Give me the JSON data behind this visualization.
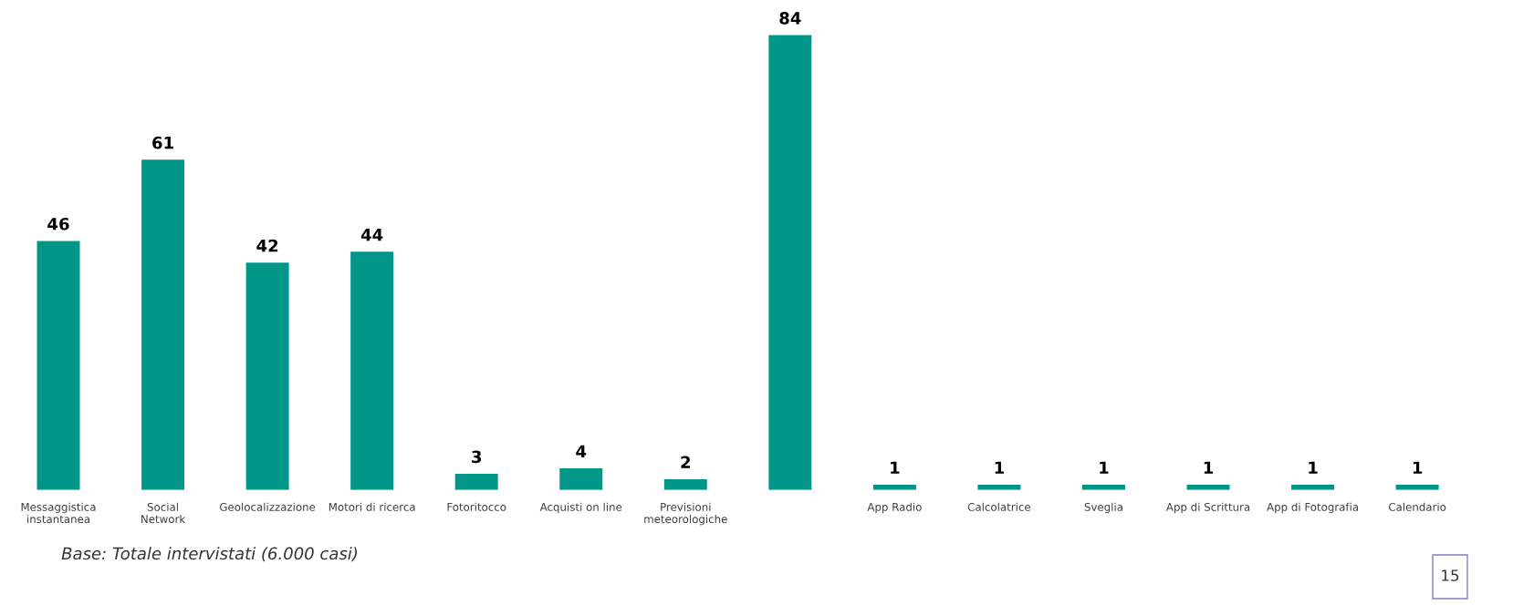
{
  "chart_data": {
    "type": "bar",
    "categories": [
      "Messaggistica\ninstantanea",
      "Social\nNetwork",
      "Geolocalizzazione",
      "Motori di ricerca",
      "Fotoritocco",
      "Acquisti on line",
      "Previsioni\nmeteorologiche",
      null,
      "App Radio",
      "Calcolatrice",
      "Sveglia",
      "App di Scrittura",
      "App di Fotografia",
      "Calendario"
    ],
    "values": [
      46,
      61,
      42,
      44,
      3,
      4,
      2,
      84,
      1,
      1,
      1,
      1,
      1,
      1
    ],
    "color": "#009688",
    "data_labels": true,
    "grid": false,
    "tick_labels": "x",
    "annotations": [
      "Base: Totale intervistati (6.000 casi)",
      "15"
    ]
  }
}
